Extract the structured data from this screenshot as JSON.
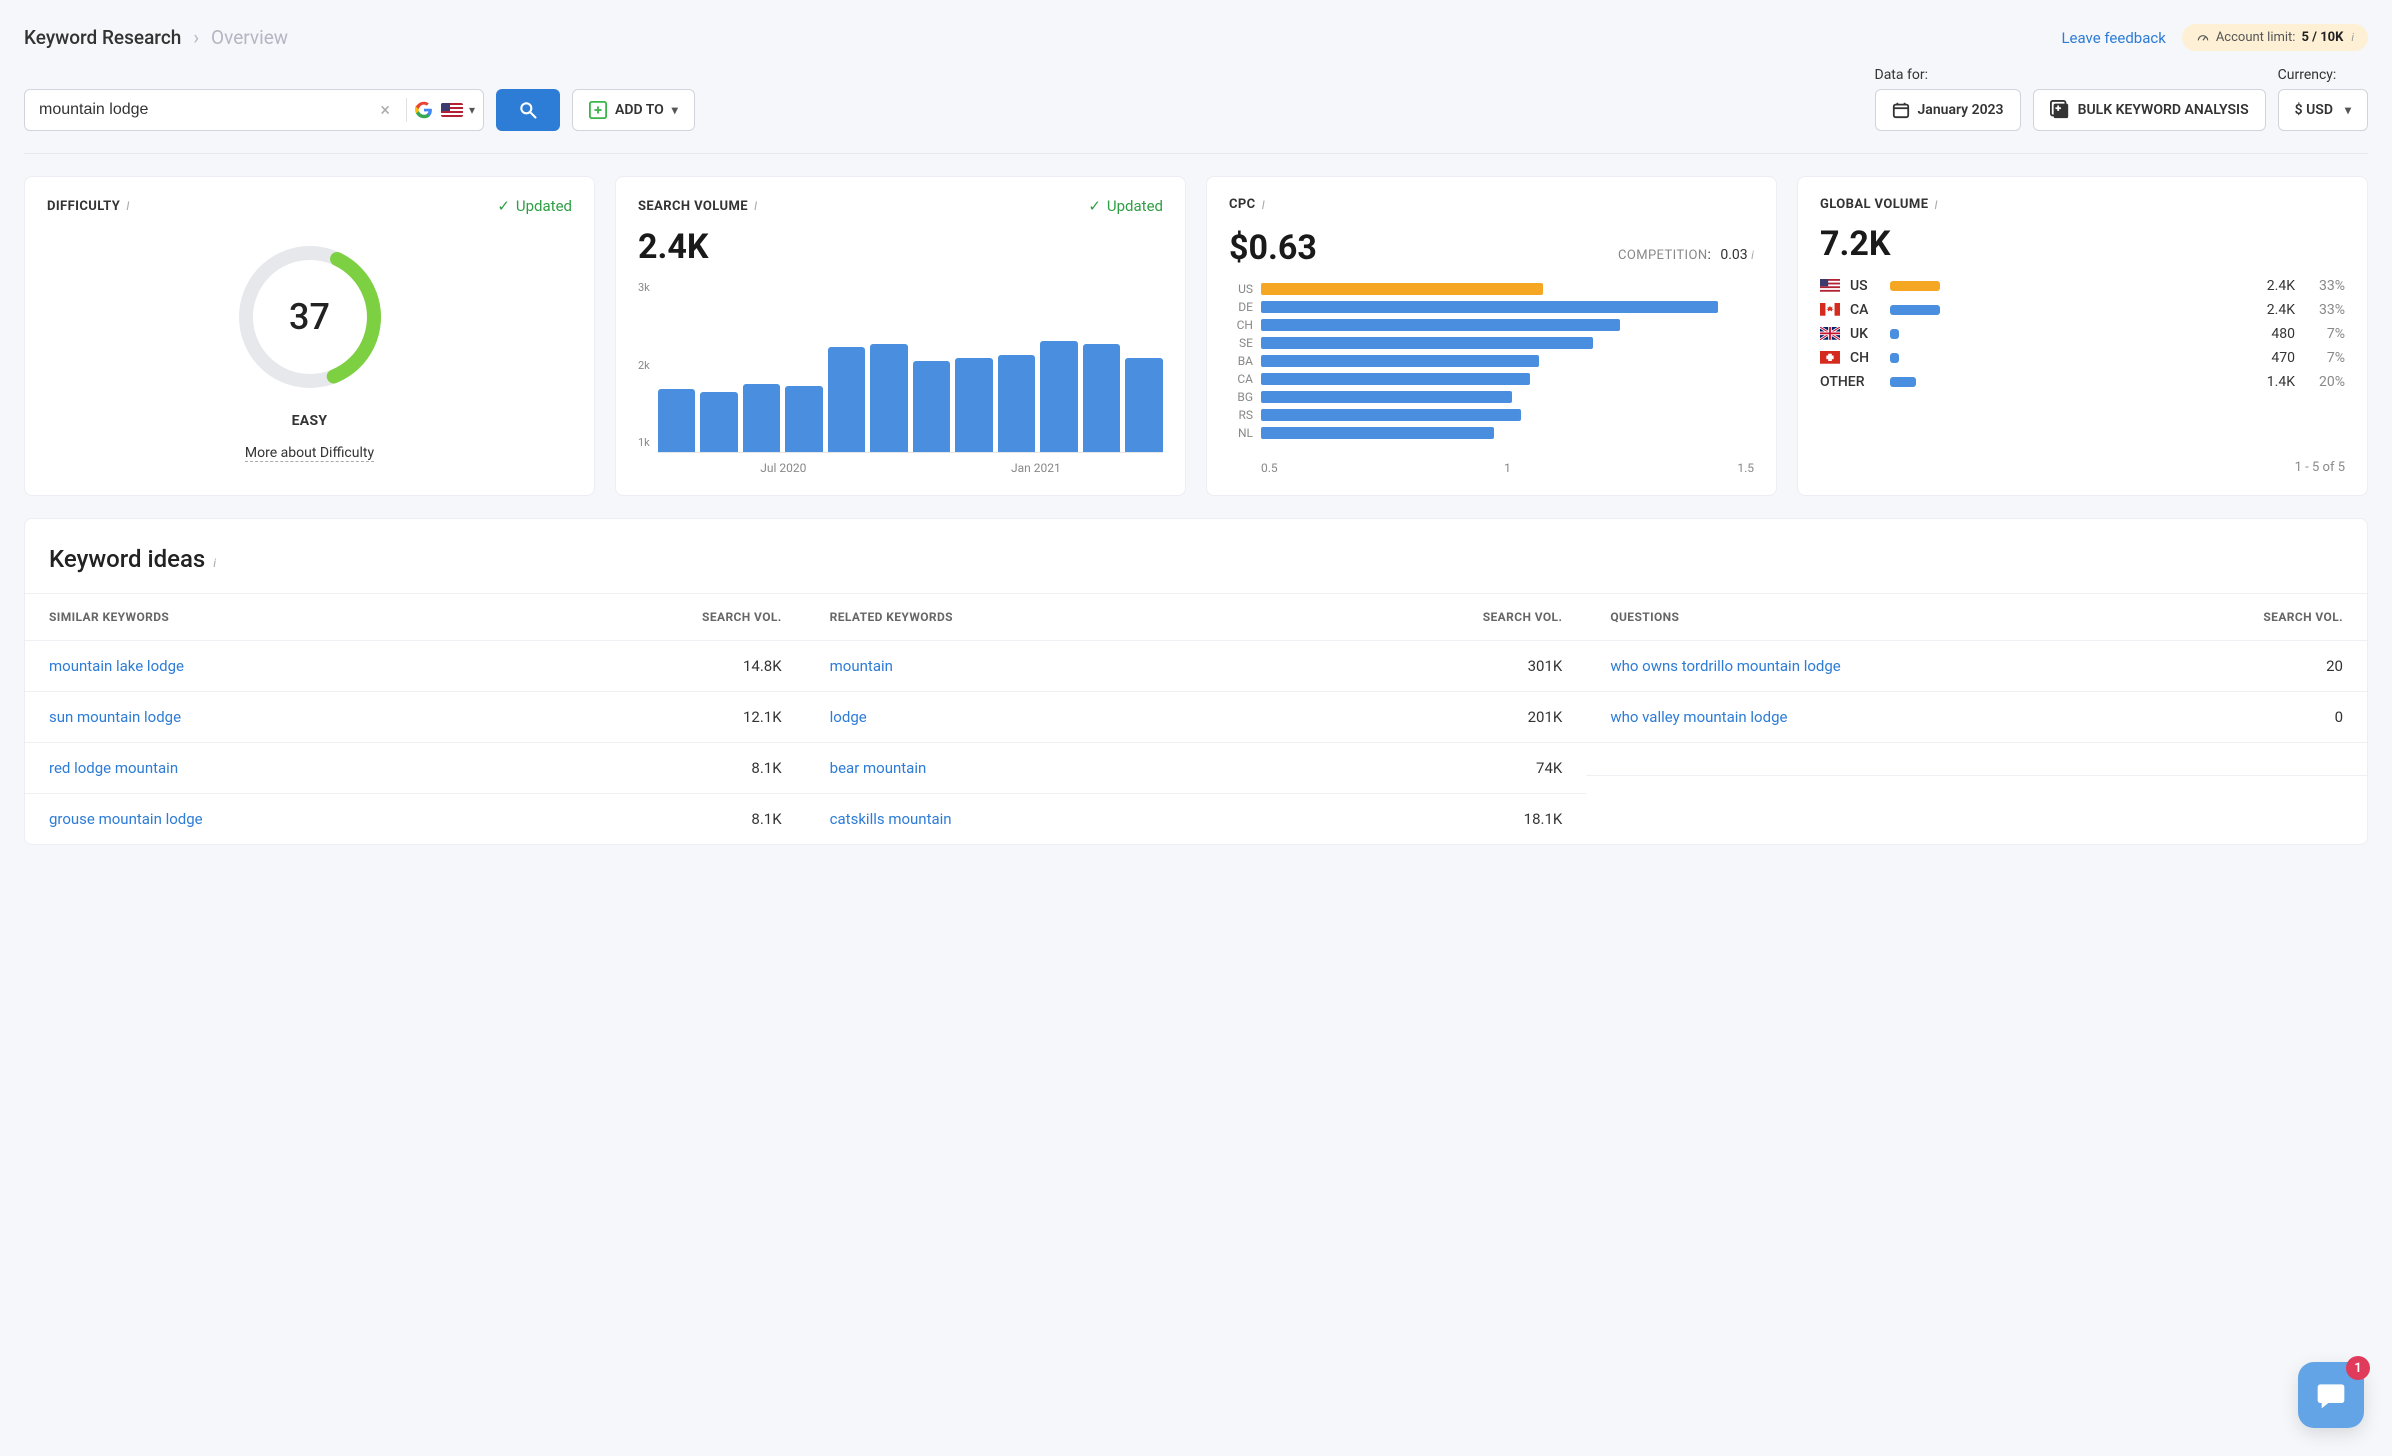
{
  "breadcrumb": {
    "main": "Keyword Research",
    "sub": "Overview"
  },
  "header": {
    "feedback": "Leave feedback",
    "limit_label": "Account limit:",
    "limit_value": "5 / 10K"
  },
  "search": {
    "value": "mountain lodge",
    "add_to": "ADD TO"
  },
  "dataFor": {
    "label": "Data for:",
    "value": "January 2023"
  },
  "bulk": {
    "label": "BULK KEYWORD ANALYSIS"
  },
  "currency": {
    "label": "Currency:",
    "value": "$ USD"
  },
  "colors": {
    "blue": "#4a8ee0",
    "orange": "#f5a623",
    "green": "#7ed321",
    "donut_bg": "#e6e8ec",
    "donut_fg": "#7ed043"
  },
  "difficulty": {
    "title": "DIFFICULTY",
    "updated": "Updated",
    "score": 37,
    "fraction": 0.37,
    "label": "EASY",
    "link": "More about Difficulty"
  },
  "volume": {
    "title": "SEARCH VOLUME",
    "updated": "Updated",
    "value": "2.4K",
    "y_ticks": [
      "3k",
      "2k",
      "1k"
    ],
    "y_max": 3000,
    "bars": [
      1100,
      1050,
      1200,
      1150,
      1850,
      1900,
      1600,
      1650,
      1700,
      1950,
      1900,
      1650
    ],
    "x_labels": [
      "Jul 2020",
      "Jan 2021"
    ]
  },
  "cpc": {
    "title": "CPC",
    "value": "$0.63",
    "competition_label": "COMPETITION",
    "competition_value": "0.03",
    "x_max": 1.1,
    "x_ticks": [
      "0.5",
      "1",
      "1.5"
    ],
    "rows": [
      {
        "code": "US",
        "value": 0.63,
        "color": "#f5a623"
      },
      {
        "code": "DE",
        "value": 1.02,
        "color": "#4a8ee0"
      },
      {
        "code": "CH",
        "value": 0.8,
        "color": "#4a8ee0"
      },
      {
        "code": "SE",
        "value": 0.74,
        "color": "#4a8ee0"
      },
      {
        "code": "BA",
        "value": 0.62,
        "color": "#4a8ee0"
      },
      {
        "code": "CA",
        "value": 0.6,
        "color": "#4a8ee0"
      },
      {
        "code": "BG",
        "value": 0.56,
        "color": "#4a8ee0"
      },
      {
        "code": "RS",
        "value": 0.58,
        "color": "#4a8ee0"
      },
      {
        "code": "NL",
        "value": 0.52,
        "color": "#4a8ee0"
      }
    ]
  },
  "global": {
    "title": "GLOBAL VOLUME",
    "value": "7.2K",
    "rows": [
      {
        "flag": "us",
        "code": "US",
        "volume": "2.4K",
        "pct": "33%",
        "bar": 100,
        "color": "#f5a623"
      },
      {
        "flag": "ca",
        "code": "CA",
        "volume": "2.4K",
        "pct": "33%",
        "bar": 100,
        "color": "#4a8ee0"
      },
      {
        "flag": "uk",
        "code": "UK",
        "volume": "480",
        "pct": "7%",
        "bar": 18,
        "color": "#4a8ee0"
      },
      {
        "flag": "ch",
        "code": "CH",
        "volume": "470",
        "pct": "7%",
        "bar": 18,
        "color": "#4a8ee0"
      },
      {
        "flag": "other",
        "code": "OTHER",
        "volume": "1.4K",
        "pct": "20%",
        "bar": 52,
        "color": "#4a8ee0"
      }
    ],
    "footer": "1 - 5 of 5"
  },
  "ideas": {
    "title": "Keyword ideas",
    "cols": [
      {
        "head": "SIMILAR KEYWORDS",
        "vol_head": "SEARCH VOL.",
        "rows": [
          {
            "kw": "mountain lake lodge",
            "vol": "14.8K"
          },
          {
            "kw": "sun mountain lodge",
            "vol": "12.1K"
          },
          {
            "kw": "red lodge mountain",
            "vol": "8.1K"
          },
          {
            "kw": "grouse mountain lodge",
            "vol": "8.1K"
          }
        ]
      },
      {
        "head": "RELATED KEYWORDS",
        "vol_head": "SEARCH VOL.",
        "rows": [
          {
            "kw": "mountain",
            "vol": "301K"
          },
          {
            "kw": "lodge",
            "vol": "201K"
          },
          {
            "kw": "bear mountain",
            "vol": "74K"
          },
          {
            "kw": "catskills mountain",
            "vol": "18.1K"
          }
        ]
      },
      {
        "head": "QUESTIONS",
        "vol_head": "SEARCH VOL.",
        "rows": [
          {
            "kw": "who owns tordrillo mountain lodge",
            "vol": "20"
          },
          {
            "kw": "who valley mountain lodge",
            "vol": "0"
          },
          {
            "kw": "",
            "vol": ""
          },
          {
            "kw": "",
            "vol": ""
          }
        ]
      }
    ]
  },
  "chat": {
    "count": "1"
  }
}
